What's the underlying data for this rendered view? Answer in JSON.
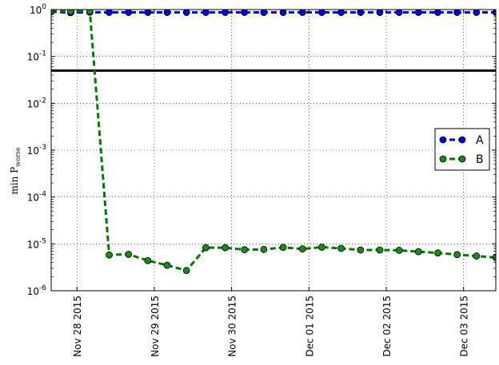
{
  "chart_data": {
    "type": "line",
    "ylabel": "min P",
    "ylabel_subscript": "worse",
    "yscale": "log",
    "ylim": [
      1e-06,
      1
    ],
    "xlim": [
      "2015-11-27T16:00",
      "2015-12-03T10:00"
    ],
    "grid": true,
    "legend_position": "center-right",
    "y_ticks": [
      {
        "value": 1,
        "base": "10",
        "exp": "0"
      },
      {
        "value": 0.1,
        "base": "10",
        "exp": "-1"
      },
      {
        "value": 0.01,
        "base": "10",
        "exp": "-2"
      },
      {
        "value": 0.001,
        "base": "10",
        "exp": "-3"
      },
      {
        "value": 0.0001,
        "base": "10",
        "exp": "-4"
      },
      {
        "value": 1e-05,
        "base": "10",
        "exp": "-5"
      },
      {
        "value": 1e-06,
        "base": "10",
        "exp": "-6"
      }
    ],
    "x_ticks": [
      {
        "date": "2015-11-28",
        "label": "Nov 28 2015"
      },
      {
        "date": "2015-11-29",
        "label": "Nov 29 2015"
      },
      {
        "date": "2015-11-30",
        "label": "Nov 30 2015"
      },
      {
        "date": "2015-12-01",
        "label": "Dec 01 2015"
      },
      {
        "date": "2015-12-02",
        "label": "Dec 02 2015"
      },
      {
        "date": "2015-12-03",
        "label": "Dec 03 2015"
      }
    ],
    "hline": {
      "value": 0.05,
      "color": "#000000"
    },
    "series": [
      {
        "name": "A",
        "color": "#0000cc",
        "marker_color": "#0000cc",
        "points": [
          [
            "2015-11-27T16:00",
            0.9
          ],
          [
            "2015-11-27T22:00",
            0.86
          ],
          [
            "2015-11-28T04:00",
            0.88
          ],
          [
            "2015-11-28T10:00",
            0.87
          ],
          [
            "2015-11-28T16:00",
            0.87
          ],
          [
            "2015-11-28T22:00",
            0.87
          ],
          [
            "2015-11-29T04:00",
            0.87
          ],
          [
            "2015-11-29T10:00",
            0.87
          ],
          [
            "2015-11-29T16:00",
            0.87
          ],
          [
            "2015-11-29T22:00",
            0.87
          ],
          [
            "2015-11-30T04:00",
            0.87
          ],
          [
            "2015-11-30T10:00",
            0.87
          ],
          [
            "2015-11-30T16:00",
            0.87
          ],
          [
            "2015-11-30T22:00",
            0.87
          ],
          [
            "2015-12-01T04:00",
            0.87
          ],
          [
            "2015-12-01T10:00",
            0.87
          ],
          [
            "2015-12-01T16:00",
            0.87
          ],
          [
            "2015-12-01T22:00",
            0.87
          ],
          [
            "2015-12-02T04:00",
            0.87
          ],
          [
            "2015-12-02T10:00",
            0.87
          ],
          [
            "2015-12-02T16:00",
            0.87
          ],
          [
            "2015-12-02T22:00",
            0.87
          ],
          [
            "2015-12-03T04:00",
            0.87
          ],
          [
            "2015-12-03T10:00",
            0.87
          ]
        ]
      },
      {
        "name": "B",
        "color": "#007700",
        "marker_color": "#1a8a1a",
        "points": [
          [
            "2015-11-27T16:00",
            0.92
          ],
          [
            "2015-11-27T22:00",
            0.92
          ],
          [
            "2015-11-28T04:00",
            0.92
          ],
          [
            "2015-11-28T10:00",
            5.8e-06
          ],
          [
            "2015-11-28T16:00",
            6e-06
          ],
          [
            "2015-11-28T22:00",
            4.4e-06
          ],
          [
            "2015-11-29T04:00",
            3.5e-06
          ],
          [
            "2015-11-29T10:00",
            2.7e-06
          ],
          [
            "2015-11-29T16:00",
            8.3e-06
          ],
          [
            "2015-11-29T22:00",
            8.3e-06
          ],
          [
            "2015-11-30T04:00",
            7.5e-06
          ],
          [
            "2015-11-30T10:00",
            7.6e-06
          ],
          [
            "2015-11-30T16:00",
            8.4e-06
          ],
          [
            "2015-11-30T22:00",
            7.8e-06
          ],
          [
            "2015-12-01T04:00",
            8.5e-06
          ],
          [
            "2015-12-01T10:00",
            8e-06
          ],
          [
            "2015-12-01T16:00",
            7.4e-06
          ],
          [
            "2015-12-01T22:00",
            7.4e-06
          ],
          [
            "2015-12-02T04:00",
            7.3e-06
          ],
          [
            "2015-12-02T10:00",
            6.8e-06
          ],
          [
            "2015-12-02T16:00",
            6.4e-06
          ],
          [
            "2015-12-02T22:00",
            5.9e-06
          ],
          [
            "2015-12-03T04:00",
            5.5e-06
          ],
          [
            "2015-12-03T10:00",
            5.1e-06
          ],
          [
            "2015-12-03T16:00",
            4.8e-06
          ]
        ]
      }
    ]
  }
}
